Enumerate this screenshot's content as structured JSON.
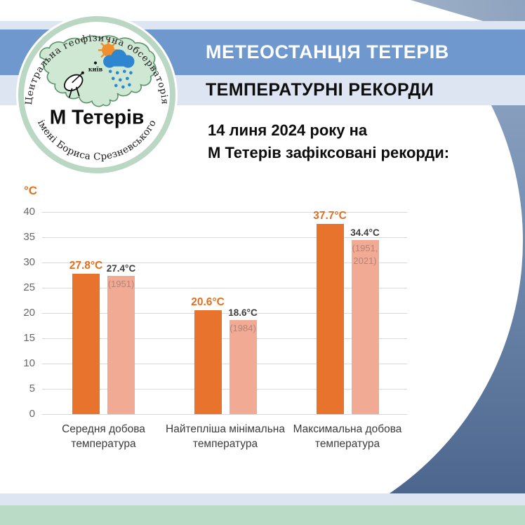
{
  "logo": {
    "arc_top_text": "Центральна геофізична обсерваторія",
    "arc_bottom_text": "імені Бориса Срезневського",
    "station_name": "М Тетерів",
    "map_city_label": "київ"
  },
  "header": {
    "title": "МЕТЕОСТАНЦІЯ ТЕТЕРІВ",
    "subtitle": "ТЕМПЕРАТУРНІ РЕКОРДИ"
  },
  "intro": {
    "line1": "14 линя 2024 року на",
    "line2": "М Тетерів зафіксовані рекорди:"
  },
  "chart_data": {
    "type": "bar",
    "unit": "°C",
    "ylim": [
      0,
      40
    ],
    "ytick_step": 5,
    "yticks": [
      40,
      35,
      30,
      25,
      20,
      15,
      10,
      5,
      0
    ],
    "grid": true,
    "legend": "none",
    "categories": [
      "Середня добова температура",
      "Найтепліша мінімальна температура",
      "Максимальна добова температура"
    ],
    "series": [
      {
        "color": "#e8732d",
        "values": [
          27.8,
          20.6,
          37.7
        ],
        "value_labels": [
          "27.8°C",
          "20.6°C",
          "37.7°C"
        ]
      },
      {
        "color": "#f1ab95",
        "values": [
          27.4,
          18.6,
          34.4
        ],
        "value_labels": [
          "27.4°C",
          "18.6°C",
          "34.4°C"
        ],
        "year_labels": [
          "(1951)",
          "(1984)",
          "(1951, 2021)"
        ]
      }
    ]
  },
  "colors": {
    "band_blue": "#6f99ce",
    "band_lavender": "#dde4f2",
    "stripe_green": "#badcc6",
    "swoosh_top": "#93a9c6",
    "swoosh_bottom": "#4c668e",
    "bar_current": "#e8732d",
    "bar_record": "#f1ab95",
    "value_current_text": "#e36f1e",
    "value_record_text": "#3f3f3f",
    "year_text": "#b48379",
    "axis_text": "#666666",
    "gridline": "#d9d9d9",
    "unit_text": "#e2711d"
  }
}
